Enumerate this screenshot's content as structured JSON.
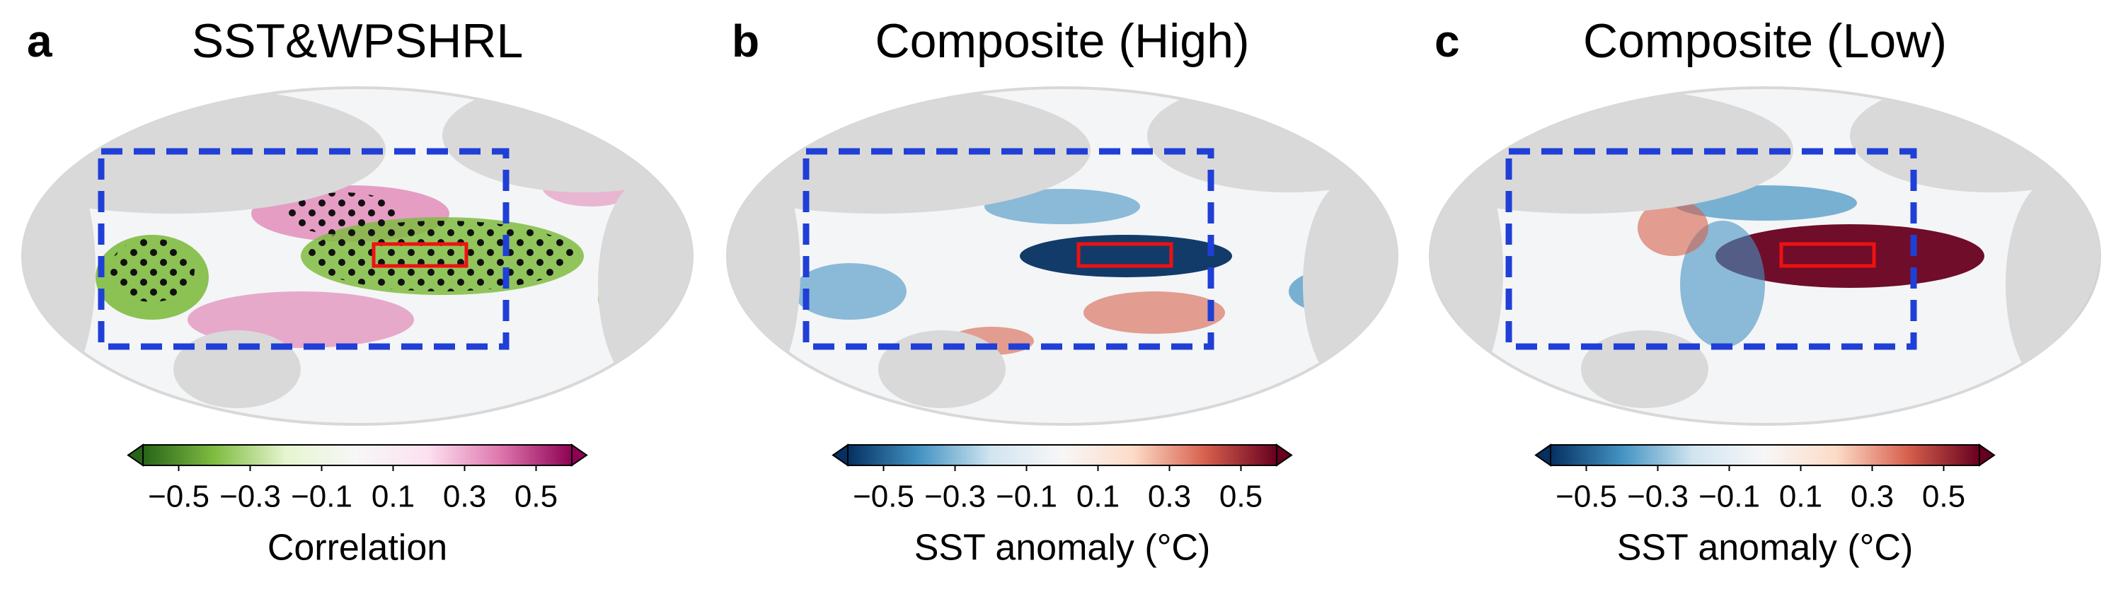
{
  "panels": [
    {
      "label": "a",
      "title": "SST&WPSHRL",
      "colorbar": {
        "label": "Correlation",
        "lim": [
          -0.6,
          0.6
        ],
        "colors": [
          "#276419",
          "#7fbc41",
          "#e6f5d0",
          "#f7f7f7",
          "#fde0ef",
          "#de77ae",
          "#8e0152"
        ],
        "ticks": [
          {
            "value": -0.5,
            "label": "−0.5"
          },
          {
            "value": -0.3,
            "label": "−0.3"
          },
          {
            "value": -0.1,
            "label": "−0.1"
          },
          0.1,
          0.3,
          0.5
        ]
      }
    },
    {
      "label": "b",
      "title": "Composite (High)",
      "colorbar": {
        "label": "SST anomaly (°C)",
        "lim": [
          -0.6,
          0.6
        ],
        "colors": [
          "#053061",
          "#4393c3",
          "#d1e5f0",
          "#f7f7f7",
          "#fddbc7",
          "#d6604d",
          "#67001f"
        ],
        "ticks": [
          {
            "value": -0.5,
            "label": "−0.5"
          },
          {
            "value": -0.3,
            "label": "−0.3"
          },
          {
            "value": -0.1,
            "label": "−0.1"
          },
          0.1,
          0.3,
          0.5
        ]
      }
    },
    {
      "label": "c",
      "title": "Composite (Low)",
      "colorbar": {
        "label": "SST anomaly (°C)",
        "lim": [
          -0.6,
          0.6
        ],
        "colors": [
          "#053061",
          "#4393c3",
          "#d1e5f0",
          "#f7f7f7",
          "#fddbc7",
          "#d6604d",
          "#67001f"
        ],
        "ticks": [
          {
            "value": -0.5,
            "label": "−0.5"
          },
          {
            "value": -0.3,
            "label": "−0.3"
          },
          {
            "value": -0.1,
            "label": "−0.1"
          },
          0.1,
          0.3,
          0.5
        ]
      }
    }
  ]
}
